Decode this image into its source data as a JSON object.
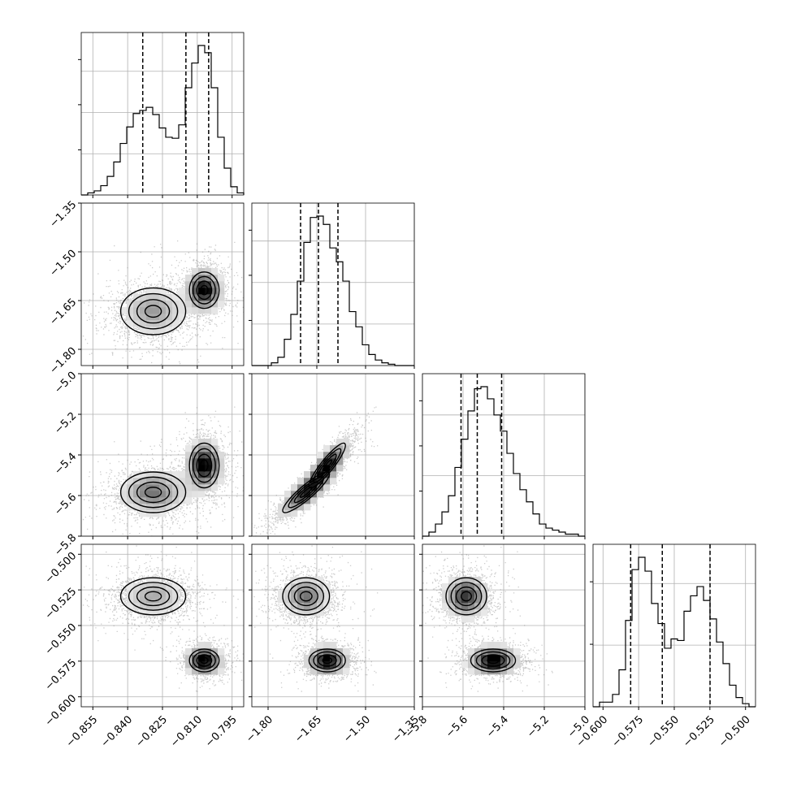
{
  "chart_data": {
    "type": "corner",
    "title": "",
    "grid": true,
    "colors": {
      "line": "#000000",
      "grid": "#b0b0b0",
      "scatter": "#7f7f7f",
      "background": "#ffffff"
    },
    "parameters": [
      {
        "range": [
          -0.86,
          -0.79
        ],
        "ticks": [
          -0.855,
          -0.84,
          -0.825,
          -0.81,
          -0.795
        ],
        "tick_labels": [
          "−0.855",
          "−0.840",
          "−0.825",
          "−0.810",
          "−0.795"
        ],
        "quantiles": [
          -0.8335,
          -0.8149,
          -0.8051
        ],
        "histogram": [
          0,
          2,
          4,
          9,
          18,
          32,
          50,
          66,
          79,
          82,
          85,
          78,
          65,
          56,
          55,
          68,
          104,
          128,
          145,
          138,
          104,
          56,
          26,
          8,
          2
        ]
      },
      {
        "range": [
          -1.85,
          -1.35
        ],
        "ticks": [
          -1.8,
          -1.65,
          -1.5,
          -1.35
        ],
        "tick_labels": [
          "−1.80",
          "−1.65",
          "−1.50",
          "−1.35"
        ],
        "quantiles": [
          -1.7,
          -1.645,
          -1.585
        ],
        "histogram": [
          0,
          0,
          0,
          2,
          6,
          19,
          37,
          61,
          89,
          107,
          108,
          102,
          85,
          75,
          61,
          39,
          28,
          15,
          8,
          4,
          2,
          1,
          0,
          0,
          0
        ]
      },
      {
        "range": [
          -5.8,
          -5.0
        ],
        "ticks": [
          -5.8,
          -5.6,
          -5.4,
          -5.2,
          -5.0
        ],
        "tick_labels": [
          "−5.8",
          "−5.6",
          "−5.4",
          "−5.2",
          "−5.0"
        ],
        "quantiles": [
          -5.61,
          -5.53,
          -5.41
        ],
        "histogram": [
          0,
          2,
          6,
          12,
          20,
          34,
          48,
          62,
          73,
          74,
          68,
          60,
          52,
          41,
          31,
          23,
          17,
          11,
          6,
          4,
          3,
          2,
          1,
          1,
          0
        ]
      },
      {
        "range": [
          -0.607,
          -0.493
        ],
        "ticks": [
          -0.6,
          -0.575,
          -0.55,
          -0.525,
          -0.5
        ],
        "tick_labels": [
          "−0.600",
          "−0.575",
          "−0.550",
          "−0.525",
          "−0.500"
        ],
        "quantiles": [
          -0.5806,
          -0.5584,
          -0.5249
        ],
        "histogram": [
          0,
          3,
          3,
          8,
          24,
          56,
          89,
          97,
          88,
          67,
          54,
          38,
          44,
          43,
          62,
          72,
          78,
          69,
          57,
          42,
          28,
          14,
          6,
          2,
          0
        ]
      }
    ],
    "clusters": [
      {
        "means": [
          -0.829,
          -1.683,
          -5.584,
          -0.5295
        ],
        "sds": [
          0.007,
          0.036,
          0.05,
          0.0065
        ],
        "weight": 0.5
      },
      {
        "means": [
          -0.807,
          -1.618,
          -5.452,
          -0.5745
        ],
        "sds": [
          0.0032,
          0.028,
          0.055,
          0.004
        ],
        "weight": 0.5
      }
    ],
    "correlations": {
      "1-2": 0.9
    }
  }
}
